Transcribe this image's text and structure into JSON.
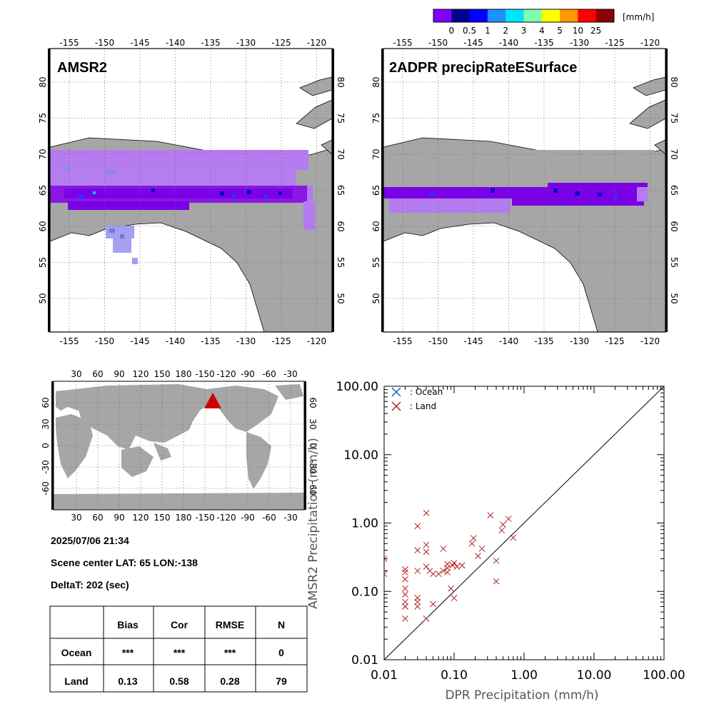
{
  "colorbar": {
    "unit": "[mm/h]",
    "labels": [
      "0",
      "0.5",
      "1",
      "2",
      "3",
      "4",
      "5",
      "10",
      "25"
    ],
    "colors": [
      "#8000ff",
      "#00008b",
      "#0000ff",
      "#1e90ff",
      "#00e5ff",
      "#7fffaa",
      "#ffff00",
      "#ff9900",
      "#ff0000",
      "#8b0000"
    ]
  },
  "map_left": {
    "title": "AMSR2"
  },
  "map_right": {
    "title": "2ADPR precipRateESurface"
  },
  "map_lon_labels": [
    "-155",
    "-150",
    "-145",
    "-140",
    "-135",
    "-130",
    "-125",
    "-120"
  ],
  "map_lat_labels": [
    "50",
    "55",
    "60",
    "65",
    "70",
    "75",
    "80"
  ],
  "world_map": {
    "lon_labels": [
      "30",
      "60",
      "90",
      "120",
      "150",
      "180",
      "-150",
      "-120",
      "-90",
      "-60",
      "-30"
    ],
    "lat_labels": [
      "60",
      "30",
      "0",
      "-30",
      "-60"
    ],
    "marker_color": "#cc0000"
  },
  "info": {
    "datetime": "2025/07/06 21:34",
    "scene_center": "Scene center LAT: 65   LON:-138",
    "delta_t": "DeltaT:  202 (sec)"
  },
  "stats_table": {
    "columns": [
      "",
      "Bias",
      "Cor",
      "RMSE",
      "N"
    ],
    "rows": [
      [
        "Ocean",
        "***",
        "***",
        "***",
        "0"
      ],
      [
        "Land",
        "0.13",
        "0.58",
        "0.28",
        "79"
      ]
    ]
  },
  "chart_data": {
    "type": "scatter",
    "xlabel": "DPR Precipitation (mm/h)",
    "ylabel": "AMSR2 Precipitation (mm/h)",
    "xscale": "log",
    "yscale": "log",
    "xlim": [
      0.01,
      100
    ],
    "ylim": [
      0.01,
      100
    ],
    "tick_labels": [
      "0.01",
      "0.10",
      "1.00",
      "10.00",
      "100.00"
    ],
    "one_to_one_line": true,
    "legend_placement": "top-left",
    "series": [
      {
        "name": ": Ocean",
        "color": "#1560d0",
        "x": [],
        "y": []
      },
      {
        "name": ": Land",
        "color": "#b22222",
        "x": [
          0.01,
          0.01,
          0.02,
          0.02,
          0.02,
          0.02,
          0.02,
          0.02,
          0.02,
          0.02,
          0.02,
          0.03,
          0.03,
          0.03,
          0.03,
          0.03,
          0.03,
          0.04,
          0.04,
          0.04,
          0.04,
          0.04,
          0.045,
          0.05,
          0.05,
          0.06,
          0.07,
          0.07,
          0.08,
          0.08,
          0.08,
          0.09,
          0.095,
          0.1,
          0.1,
          0.11,
          0.13,
          0.18,
          0.19,
          0.22,
          0.25,
          0.33,
          0.4,
          0.4,
          0.48,
          0.5,
          0.6,
          0.7
        ],
        "y": [
          0.3,
          0.18,
          0.21,
          0.19,
          0.15,
          0.11,
          0.09,
          0.07,
          0.06,
          0.06,
          0.04,
          0.9,
          0.4,
          0.2,
          0.08,
          0.07,
          0.06,
          1.4,
          0.48,
          0.38,
          0.23,
          0.04,
          0.2,
          0.18,
          0.065,
          0.18,
          0.42,
          0.2,
          0.25,
          0.22,
          0.19,
          0.11,
          0.24,
          0.26,
          0.08,
          0.23,
          0.24,
          0.5,
          0.6,
          0.33,
          0.42,
          1.3,
          0.28,
          0.14,
          0.78,
          0.95,
          1.15,
          0.61
        ]
      }
    ]
  }
}
